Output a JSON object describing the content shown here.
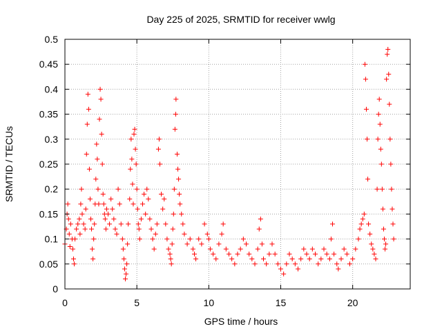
{
  "chart_data": {
    "type": "scatter",
    "title": "Day 225 of 2025, SRMTID for receiver wwlg",
    "xlabel": "GPS time / hours",
    "ylabel": "SRMTID / TECUs",
    "xlim": [
      0,
      24
    ],
    "ylim": [
      0,
      0.5
    ],
    "x_ticks": [
      0,
      5,
      10,
      15,
      20
    ],
    "x_tick_labels": [
      "0",
      "5",
      "10",
      "15",
      "20"
    ],
    "y_ticks": [
      0,
      0.05,
      0.1,
      0.15,
      0.2,
      0.25,
      0.3,
      0.35,
      0.4,
      0.45,
      0.5
    ],
    "y_tick_labels": [
      "0",
      "0.05",
      "0.1",
      "0.15",
      "0.2",
      "0.25",
      "0.3",
      "0.35",
      "0.4",
      "0.45",
      "0.5"
    ],
    "grid": true,
    "marker": "+",
    "color": "#ff0000",
    "series": [
      {
        "name": "SRMTID",
        "points": [
          [
            0.0,
            0.09
          ],
          [
            0.1,
            0.12
          ],
          [
            0.15,
            0.15
          ],
          [
            0.2,
            0.17
          ],
          [
            0.25,
            0.14
          ],
          [
            0.3,
            0.11
          ],
          [
            0.35,
            0.085
          ],
          [
            0.4,
            0.13
          ],
          [
            0.5,
            0.1
          ],
          [
            0.55,
            0.08
          ],
          [
            0.6,
            0.06
          ],
          [
            0.65,
            0.05
          ],
          [
            0.7,
            0.1
          ],
          [
            0.8,
            0.12
          ],
          [
            0.9,
            0.13
          ],
          [
            1.0,
            0.14
          ],
          [
            1.05,
            0.11
          ],
          [
            1.1,
            0.17
          ],
          [
            1.15,
            0.2
          ],
          [
            1.2,
            0.15
          ],
          [
            1.3,
            0.13
          ],
          [
            1.4,
            0.12
          ],
          [
            1.45,
            0.16
          ],
          [
            1.5,
            0.27
          ],
          [
            1.55,
            0.33
          ],
          [
            1.6,
            0.39
          ],
          [
            1.65,
            0.36
          ],
          [
            1.7,
            0.24
          ],
          [
            1.75,
            0.18
          ],
          [
            1.8,
            0.14
          ],
          [
            1.85,
            0.12
          ],
          [
            1.9,
            0.08
          ],
          [
            1.95,
            0.06
          ],
          [
            2.0,
            0.1
          ],
          [
            2.05,
            0.13
          ],
          [
            2.1,
            0.17
          ],
          [
            2.15,
            0.22
          ],
          [
            2.2,
            0.29
          ],
          [
            2.25,
            0.26
          ],
          [
            2.3,
            0.2
          ],
          [
            2.35,
            0.17
          ],
          [
            2.4,
            0.34
          ],
          [
            2.45,
            0.4
          ],
          [
            2.5,
            0.38
          ],
          [
            2.55,
            0.31
          ],
          [
            2.6,
            0.25
          ],
          [
            2.65,
            0.19
          ],
          [
            2.7,
            0.17
          ],
          [
            2.75,
            0.15
          ],
          [
            2.8,
            0.14
          ],
          [
            2.85,
            0.12
          ],
          [
            2.9,
            0.16
          ],
          [
            3.0,
            0.15
          ],
          [
            3.1,
            0.13
          ],
          [
            3.2,
            0.18
          ],
          [
            3.3,
            0.16
          ],
          [
            3.4,
            0.14
          ],
          [
            3.5,
            0.12
          ],
          [
            3.6,
            0.11
          ],
          [
            3.7,
            0.2
          ],
          [
            3.8,
            0.17
          ],
          [
            3.9,
            0.13
          ],
          [
            4.0,
            0.1
          ],
          [
            4.05,
            0.08
          ],
          [
            4.1,
            0.06
          ],
          [
            4.15,
            0.04
          ],
          [
            4.2,
            0.02
          ],
          [
            4.25,
            0.03
          ],
          [
            4.3,
            0.05
          ],
          [
            4.35,
            0.09
          ],
          [
            4.4,
            0.13
          ],
          [
            4.5,
            0.18
          ],
          [
            4.55,
            0.24
          ],
          [
            4.6,
            0.3
          ],
          [
            4.65,
            0.26
          ],
          [
            4.7,
            0.21
          ],
          [
            4.75,
            0.17
          ],
          [
            4.8,
            0.31
          ],
          [
            4.85,
            0.32
          ],
          [
            4.9,
            0.28
          ],
          [
            4.95,
            0.25
          ],
          [
            5.0,
            0.2
          ],
          [
            5.05,
            0.16
          ],
          [
            5.1,
            0.13
          ],
          [
            5.15,
            0.12
          ],
          [
            5.2,
            0.1
          ],
          [
            5.3,
            0.14
          ],
          [
            5.4,
            0.17
          ],
          [
            5.5,
            0.19
          ],
          [
            5.6,
            0.15
          ],
          [
            5.7,
            0.2
          ],
          [
            5.8,
            0.18
          ],
          [
            5.9,
            0.14
          ],
          [
            6.0,
            0.12
          ],
          [
            6.1,
            0.1
          ],
          [
            6.2,
            0.08
          ],
          [
            6.3,
            0.11
          ],
          [
            6.4,
            0.13
          ],
          [
            6.5,
            0.28
          ],
          [
            6.55,
            0.3
          ],
          [
            6.6,
            0.25
          ],
          [
            6.7,
            0.19
          ],
          [
            6.8,
            0.16
          ],
          [
            6.9,
            0.18
          ],
          [
            7.0,
            0.13
          ],
          [
            7.1,
            0.1
          ],
          [
            7.2,
            0.08
          ],
          [
            7.3,
            0.07
          ],
          [
            7.35,
            0.06
          ],
          [
            7.4,
            0.05
          ],
          [
            7.45,
            0.09
          ],
          [
            7.5,
            0.12
          ],
          [
            7.55,
            0.15
          ],
          [
            7.6,
            0.2
          ],
          [
            7.65,
            0.32
          ],
          [
            7.7,
            0.35
          ],
          [
            7.72,
            0.38
          ],
          [
            7.8,
            0.27
          ],
          [
            7.85,
            0.24
          ],
          [
            7.9,
            0.22
          ],
          [
            7.95,
            0.19
          ],
          [
            8.0,
            0.17
          ],
          [
            8.1,
            0.15
          ],
          [
            8.2,
            0.13
          ],
          [
            8.3,
            0.11
          ],
          [
            8.5,
            0.09
          ],
          [
            8.7,
            0.1
          ],
          [
            8.9,
            0.08
          ],
          [
            9.0,
            0.07
          ],
          [
            9.1,
            0.06
          ],
          [
            9.3,
            0.1
          ],
          [
            9.5,
            0.09
          ],
          [
            9.7,
            0.13
          ],
          [
            9.9,
            0.11
          ],
          [
            10.0,
            0.1
          ],
          [
            10.1,
            0.08
          ],
          [
            10.3,
            0.07
          ],
          [
            10.5,
            0.06
          ],
          [
            10.7,
            0.09
          ],
          [
            10.9,
            0.11
          ],
          [
            11.0,
            0.13
          ],
          [
            11.2,
            0.08
          ],
          [
            11.4,
            0.07
          ],
          [
            11.6,
            0.06
          ],
          [
            11.8,
            0.05
          ],
          [
            12.0,
            0.07
          ],
          [
            12.2,
            0.08
          ],
          [
            12.4,
            0.1
          ],
          [
            12.6,
            0.09
          ],
          [
            12.8,
            0.07
          ],
          [
            13.0,
            0.06
          ],
          [
            13.2,
            0.05
          ],
          [
            13.4,
            0.08
          ],
          [
            13.5,
            0.12
          ],
          [
            13.6,
            0.14
          ],
          [
            13.7,
            0.09
          ],
          [
            13.8,
            0.06
          ],
          [
            14.0,
            0.05
          ],
          [
            14.2,
            0.07
          ],
          [
            14.4,
            0.09
          ],
          [
            14.6,
            0.07
          ],
          [
            14.8,
            0.05
          ],
          [
            15.0,
            0.04
          ],
          [
            15.2,
            0.03
          ],
          [
            15.4,
            0.05
          ],
          [
            15.6,
            0.07
          ],
          [
            15.8,
            0.06
          ],
          [
            16.0,
            0.05
          ],
          [
            16.2,
            0.04
          ],
          [
            16.4,
            0.06
          ],
          [
            16.6,
            0.08
          ],
          [
            16.8,
            0.07
          ],
          [
            17.0,
            0.06
          ],
          [
            17.2,
            0.08
          ],
          [
            17.4,
            0.07
          ],
          [
            17.6,
            0.05
          ],
          [
            17.8,
            0.06
          ],
          [
            18.0,
            0.08
          ],
          [
            18.2,
            0.07
          ],
          [
            18.4,
            0.06
          ],
          [
            18.5,
            0.1
          ],
          [
            18.6,
            0.13
          ],
          [
            18.7,
            0.07
          ],
          [
            18.9,
            0.05
          ],
          [
            19.0,
            0.04
          ],
          [
            19.2,
            0.06
          ],
          [
            19.4,
            0.08
          ],
          [
            19.6,
            0.07
          ],
          [
            19.8,
            0.05
          ],
          [
            20.0,
            0.06
          ],
          [
            20.2,
            0.08
          ],
          [
            20.4,
            0.1
          ],
          [
            20.5,
            0.12
          ],
          [
            20.6,
            0.13
          ],
          [
            20.7,
            0.14
          ],
          [
            20.8,
            0.15
          ],
          [
            20.85,
            0.45
          ],
          [
            20.9,
            0.42
          ],
          [
            20.95,
            0.36
          ],
          [
            21.0,
            0.3
          ],
          [
            21.05,
            0.22
          ],
          [
            21.1,
            0.13
          ],
          [
            21.2,
            0.11
          ],
          [
            21.3,
            0.09
          ],
          [
            21.4,
            0.08
          ],
          [
            21.5,
            0.07
          ],
          [
            21.6,
            0.06
          ],
          [
            21.7,
            0.2
          ],
          [
            21.75,
            0.3
          ],
          [
            21.8,
            0.35
          ],
          [
            21.85,
            0.38
          ],
          [
            21.9,
            0.33
          ],
          [
            21.95,
            0.28
          ],
          [
            22.0,
            0.25
          ],
          [
            22.05,
            0.2
          ],
          [
            22.1,
            0.16
          ],
          [
            22.15,
            0.12
          ],
          [
            22.2,
            0.1
          ],
          [
            22.25,
            0.08
          ],
          [
            22.3,
            0.09
          ],
          [
            22.35,
            0.42
          ],
          [
            22.4,
            0.47
          ],
          [
            22.45,
            0.48
          ],
          [
            22.5,
            0.43
          ],
          [
            22.55,
            0.37
          ],
          [
            22.6,
            0.3
          ],
          [
            22.65,
            0.25
          ],
          [
            22.7,
            0.2
          ],
          [
            22.75,
            0.16
          ],
          [
            22.8,
            0.13
          ],
          [
            22.85,
            0.1
          ]
        ]
      }
    ]
  }
}
